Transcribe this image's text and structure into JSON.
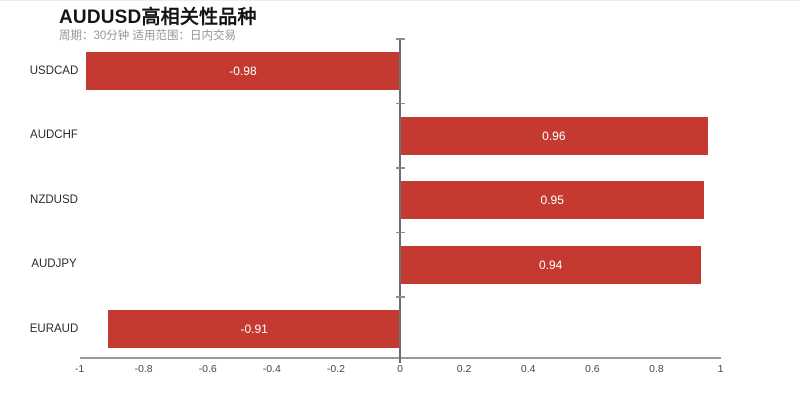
{
  "chart_data": {
    "type": "bar",
    "orientation": "horizontal",
    "title": "AUDUSD高相关性品种",
    "subtitle": "周期：30分钟 适用范围：日内交易",
    "categories": [
      "USDCAD",
      "AUDCHF",
      "NZDUSD",
      "AUDJPY",
      "EURAUD"
    ],
    "values": [
      -0.98,
      0.96,
      0.95,
      0.94,
      -0.91
    ],
    "value_labels": [
      "-0.98",
      "0.96",
      "0.95",
      "0.94",
      "-0.91"
    ],
    "xlim": [
      -1,
      1
    ],
    "xticks": [
      -1,
      -0.8,
      -0.6,
      -0.4,
      -0.2,
      0,
      0.2,
      0.4,
      0.6,
      0.8,
      1
    ],
    "xtick_labels": [
      "-1",
      "-0.8",
      "-0.6",
      "-0.4",
      "-0.2",
      "0",
      "0.2",
      "0.4",
      "0.6",
      "0.8",
      "1"
    ],
    "grid": false,
    "legend": false,
    "colors": {
      "bar": "#c43a31",
      "value_label": "#ffffff",
      "category_label": "#2b2b2b",
      "tick_label": "#474747",
      "x_axis_line": "#9a9a9a",
      "zero_axis_line": "#6e6e6e",
      "zero_axis_tick": "#8c8c8c",
      "title": "#141414",
      "subtitle": "#979797"
    }
  }
}
